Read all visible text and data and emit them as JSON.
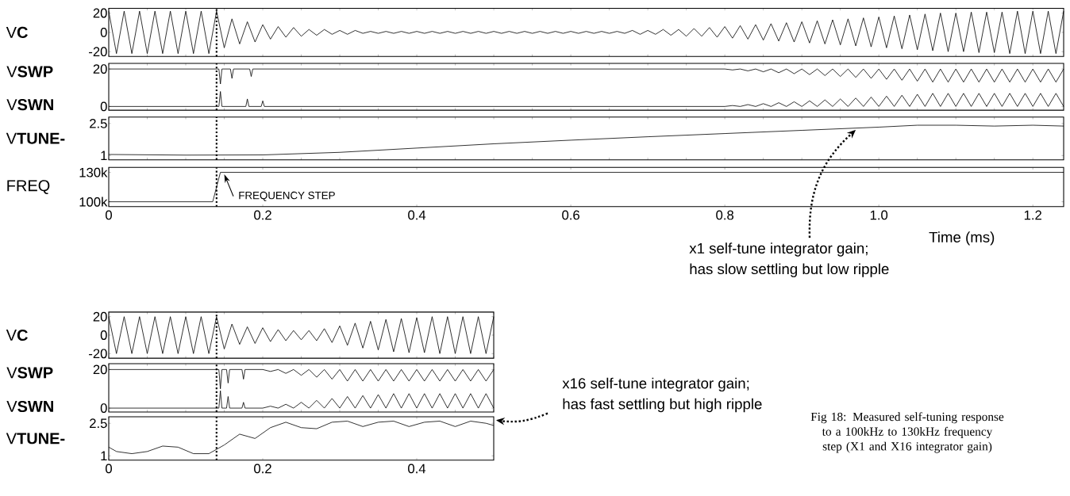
{
  "chart_data": [
    {
      "type": "line",
      "ylabel": "V**C**",
      "xlim": [
        0,
        1.24
      ],
      "ylim": [
        -25,
        25
      ],
      "yticks": [
        -20,
        0,
        20
      ],
      "tick_labels": "y",
      "ref_lines": [
        {
          "axis": "x",
          "value": 0.14,
          "line_style": "dotted"
        }
      ],
      "series": [
        {
          "color": "#000000",
          "x": [
            0,
            0.01,
            0.02,
            0.03,
            0.04,
            0.05,
            0.06,
            0.07,
            0.08,
            0.09,
            0.1,
            0.11,
            0.12,
            0.13,
            0.14,
            0.15,
            0.16,
            0.17,
            0.18,
            0.19,
            0.2,
            0.21,
            0.22,
            0.23,
            0.24,
            0.25,
            0.26,
            0.27,
            0.28,
            0.29,
            0.3,
            0.31,
            0.32,
            0.33,
            0.34,
            0.35,
            0.36,
            0.37,
            0.38,
            0.39,
            0.4,
            0.41,
            0.42,
            0.43,
            0.44,
            0.45,
            0.46,
            0.47,
            0.48,
            0.49,
            0.5,
            0.51,
            0.52,
            0.53,
            0.54,
            0.55,
            0.56,
            0.57,
            0.58,
            0.59,
            0.6,
            0.61,
            0.62,
            0.63,
            0.64,
            0.65,
            0.66,
            0.67,
            0.68,
            0.69,
            0.7,
            0.71,
            0.72,
            0.73,
            0.74,
            0.75,
            0.76,
            0.77,
            0.78,
            0.79,
            0.8,
            0.81,
            0.82,
            0.83,
            0.84,
            0.85,
            0.86,
            0.87,
            0.88,
            0.89,
            0.9,
            0.91,
            0.92,
            0.93,
            0.94,
            0.95,
            0.96,
            0.97,
            0.98,
            0.99,
            1.0,
            1.01,
            1.02,
            1.03,
            1.04,
            1.05,
            1.06,
            1.07,
            1.08,
            1.09,
            1.1,
            1.11,
            1.12,
            1.13,
            1.14,
            1.15,
            1.16,
            1.17,
            1.18,
            1.19,
            1.2,
            1.21,
            1.22,
            1.23,
            1.24
          ],
          "values": [
            22,
            -22,
            22,
            -22,
            22,
            -22,
            22,
            -22,
            22,
            -22,
            22,
            -22,
            22,
            -22,
            22,
            -16,
            14,
            -12,
            11,
            -10,
            8,
            -7,
            6,
            -5,
            5,
            -4,
            3,
            -3,
            3,
            -2,
            2,
            -2,
            2,
            -1,
            1,
            -1,
            1,
            -1,
            1,
            -1,
            1,
            -1,
            1,
            -1,
            1,
            -1,
            1,
            -1,
            1,
            -1,
            1,
            -1,
            1,
            -1,
            1,
            -1,
            1,
            -1,
            1,
            -1,
            1,
            -1,
            1,
            -1,
            1,
            -1,
            1,
            -1,
            2,
            -2,
            2,
            -2,
            3,
            -3,
            3,
            -4,
            4,
            -4,
            5,
            -5,
            6,
            -6,
            7,
            -7,
            8,
            -8,
            9,
            -9,
            10,
            -10,
            11,
            -11,
            12,
            -12,
            13,
            -13,
            14,
            -14,
            15,
            -15,
            16,
            -16,
            17,
            -17,
            18,
            -18,
            19,
            -19,
            20,
            -20,
            20,
            -20,
            21,
            -21,
            21,
            -21,
            21,
            -22,
            22,
            -22,
            22,
            -22,
            22,
            -22,
            22
          ]
        }
      ]
    },
    {
      "type": "line",
      "xlim": [
        0,
        1.24
      ],
      "ylim": [
        -2,
        23
      ],
      "yticks": [
        0,
        20
      ],
      "tick_labels": "y",
      "ref_lines": [
        {
          "axis": "x",
          "value": 0.14,
          "line_style": "dotted"
        }
      ],
      "annotations": [
        "V**SWP**",
        "V**SWN**"
      ],
      "series": [
        {
          "color": "#000000",
          "x": [
            0,
            0.143,
            0.145,
            0.147,
            0.158,
            0.16,
            0.162,
            0.183,
            0.185,
            0.187,
            0.8,
            0.81,
            0.82,
            0.83,
            0.84,
            0.85,
            0.86,
            0.87,
            0.88,
            0.89,
            0.9,
            0.91,
            0.92,
            0.93,
            0.94,
            0.95,
            0.96,
            0.97,
            0.98,
            0.99,
            1.0,
            1.01,
            1.02,
            1.03,
            1.04,
            1.05,
            1.06,
            1.07,
            1.08,
            1.09,
            1.1,
            1.11,
            1.12,
            1.13,
            1.14,
            1.15,
            1.16,
            1.17,
            1.18,
            1.19,
            1.2,
            1.21,
            1.22,
            1.23,
            1.24
          ],
          "values": [
            20,
            20,
            12,
            20,
            20,
            15,
            20,
            20,
            16,
            20,
            20,
            19.5,
            20,
            19,
            20,
            18.5,
            20,
            18,
            20,
            17.5,
            20,
            17,
            20,
            16.5,
            20,
            16,
            20,
            15.5,
            20,
            15,
            20,
            14.5,
            20,
            14,
            20,
            13.5,
            20,
            13,
            20,
            13,
            20,
            13,
            20,
            13,
            20,
            13,
            20,
            13,
            20,
            13,
            20,
            13,
            20,
            13,
            20
          ]
        },
        {
          "color": "#000000",
          "x": [
            0,
            0.143,
            0.145,
            0.147,
            0.178,
            0.18,
            0.182,
            0.198,
            0.2,
            0.202,
            0.8,
            0.81,
            0.82,
            0.83,
            0.84,
            0.85,
            0.86,
            0.87,
            0.88,
            0.89,
            0.9,
            0.91,
            0.92,
            0.93,
            0.94,
            0.95,
            0.96,
            0.97,
            0.98,
            0.99,
            1.0,
            1.01,
            1.02,
            1.03,
            1.04,
            1.05,
            1.06,
            1.07,
            1.08,
            1.09,
            1.1,
            1.11,
            1.12,
            1.13,
            1.14,
            1.15,
            1.16,
            1.17,
            1.18,
            1.19,
            1.2,
            1.21,
            1.22,
            1.23,
            1.24
          ],
          "values": [
            0,
            0,
            8,
            0,
            0,
            4,
            0,
            0,
            3,
            0,
            0,
            0.5,
            0,
            1,
            0,
            1.5,
            0,
            2,
            0,
            2.5,
            0,
            3,
            0,
            3.5,
            0,
            4,
            0,
            4.5,
            0,
            5,
            0,
            5.5,
            0,
            6,
            0,
            6.5,
            0,
            7,
            0,
            7,
            0,
            7,
            0,
            7,
            0,
            7,
            0,
            7,
            0,
            7,
            0,
            7,
            0,
            7,
            0
          ]
        }
      ]
    },
    {
      "type": "line",
      "ylabel": "V**TUNE-**",
      "xlim": [
        0,
        1.24
      ],
      "ylim": [
        0.8,
        2.8
      ],
      "yticks": [
        1,
        2.5
      ],
      "tick_labels": "y",
      "ref_lines": [
        {
          "axis": "x",
          "value": 0.14,
          "line_style": "dotted"
        }
      ],
      "annotations": [
        {
          "text": "x1 self-tune integrator gain;",
          "x": 0.97,
          "y": 2.2
        },
        "has slow settling but low ripple"
      ],
      "series": [
        {
          "color": "#000000",
          "x": [
            0,
            0.1,
            0.2,
            0.3,
            0.4,
            0.5,
            0.6,
            0.7,
            0.8,
            0.9,
            1.0,
            1.05,
            1.1,
            1.15,
            1.2,
            1.24
          ],
          "values": [
            1.05,
            1.02,
            1.03,
            1.15,
            1.35,
            1.55,
            1.72,
            1.88,
            2.03,
            2.18,
            2.33,
            2.42,
            2.42,
            2.38,
            2.42,
            2.38
          ]
        }
      ]
    },
    {
      "type": "line",
      "ylabel": "FREQ",
      "xlabel": "Time (ms)",
      "xlim": [
        0,
        1.24
      ],
      "ylim": [
        95000,
        135000
      ],
      "yticks": [
        {
          "value": 100000,
          "label": "100k"
        },
        {
          "value": 130000,
          "label": "130k"
        }
      ],
      "xticks": [
        0,
        0.2,
        0.4,
        0.6,
        0.8,
        {
          "value": 1,
          "label": "1.0"
        },
        1.2
      ],
      "ref_lines": [
        {
          "axis": "x",
          "value": 0.14,
          "line_style": "dotted"
        }
      ],
      "annotations": [
        {
          "text": "FREQUENCY STEP",
          "x": 0.15,
          "y": 128000
        }
      ],
      "series": [
        {
          "color": "#000000",
          "x": [
            0,
            0.135,
            0.145,
            1.24
          ],
          "values": [
            100000,
            100000,
            130000,
            130000
          ]
        }
      ]
    },
    {
      "type": "line",
      "ylabel": "V**C**",
      "xlim": [
        0,
        0.5
      ],
      "ylim": [
        -25,
        25
      ],
      "yticks": [
        -20,
        0,
        20
      ],
      "tick_labels": "y",
      "ref_lines": [
        {
          "axis": "x",
          "value": 0.14,
          "line_style": "dotted"
        }
      ],
      "series": [
        {
          "color": "#000000",
          "x": [
            0,
            0.01,
            0.02,
            0.03,
            0.04,
            0.05,
            0.06,
            0.07,
            0.08,
            0.09,
            0.1,
            0.11,
            0.12,
            0.13,
            0.14,
            0.15,
            0.16,
            0.17,
            0.18,
            0.19,
            0.2,
            0.21,
            0.22,
            0.23,
            0.24,
            0.25,
            0.26,
            0.27,
            0.28,
            0.29,
            0.3,
            0.31,
            0.32,
            0.33,
            0.34,
            0.35,
            0.36,
            0.37,
            0.38,
            0.39,
            0.4,
            0.41,
            0.42,
            0.43,
            0.44,
            0.45,
            0.46,
            0.47,
            0.48,
            0.49,
            0.5
          ],
          "values": [
            20,
            -20,
            20,
            -20,
            20,
            -20,
            20,
            -20,
            20,
            -20,
            20,
            -20,
            20,
            -20,
            20,
            -15,
            12,
            -10,
            9,
            -9,
            8,
            -7,
            6,
            -6,
            5,
            -5,
            5,
            -6,
            7,
            -8,
            10,
            -11,
            13,
            -14,
            15,
            -16,
            17,
            -18,
            18,
            -19,
            19,
            -19,
            20,
            -20,
            20,
            -20,
            20,
            -20,
            20,
            -20,
            20
          ]
        }
      ]
    },
    {
      "type": "line",
      "xlim": [
        0,
        0.5
      ],
      "ylim": [
        -2,
        23
      ],
      "yticks": [
        0,
        20
      ],
      "tick_labels": "y",
      "ref_lines": [
        {
          "axis": "x",
          "value": 0.14,
          "line_style": "dotted"
        }
      ],
      "annotations": [
        "V**SWP**",
        "V**SWN**"
      ],
      "series": [
        {
          "color": "#000000",
          "x": [
            0,
            0.143,
            0.145,
            0.147,
            0.153,
            0.155,
            0.157,
            0.173,
            0.175,
            0.177,
            0.2,
            0.21,
            0.22,
            0.23,
            0.24,
            0.25,
            0.26,
            0.27,
            0.28,
            0.29,
            0.3,
            0.31,
            0.32,
            0.33,
            0.34,
            0.35,
            0.36,
            0.37,
            0.38,
            0.39,
            0.4,
            0.41,
            0.42,
            0.43,
            0.44,
            0.45,
            0.46,
            0.47,
            0.48,
            0.49,
            0.5
          ],
          "values": [
            20,
            20,
            10,
            20,
            20,
            13,
            20,
            20,
            15,
            20,
            20,
            19,
            20,
            18,
            20,
            17,
            20,
            16,
            20,
            15,
            20,
            14,
            20,
            14,
            20,
            14,
            20,
            14,
            20,
            14,
            20,
            14,
            20,
            14,
            20,
            14,
            20,
            14,
            20,
            14,
            20
          ]
        },
        {
          "color": "#000000",
          "x": [
            0,
            0.143,
            0.145,
            0.147,
            0.153,
            0.155,
            0.157,
            0.173,
            0.175,
            0.177,
            0.2,
            0.21,
            0.22,
            0.23,
            0.24,
            0.25,
            0.26,
            0.27,
            0.28,
            0.29,
            0.3,
            0.31,
            0.32,
            0.33,
            0.34,
            0.35,
            0.36,
            0.37,
            0.38,
            0.39,
            0.4,
            0.41,
            0.42,
            0.43,
            0.44,
            0.45,
            0.46,
            0.47,
            0.48,
            0.49,
            0.5
          ],
          "values": [
            0,
            0,
            9,
            0,
            0,
            6,
            0,
            0,
            3,
            0,
            0,
            1,
            0,
            2,
            0,
            3,
            0,
            4,
            0,
            5,
            0,
            6,
            0,
            6.5,
            0,
            7,
            0,
            7.5,
            0,
            7.5,
            0,
            7.5,
            0,
            7.5,
            0,
            7.5,
            0,
            7.5,
            0,
            7.5,
            0
          ]
        }
      ]
    },
    {
      "type": "line",
      "ylabel": "V**TUNE-**",
      "xlim": [
        0,
        0.5
      ],
      "ylim": [
        0.8,
        2.8
      ],
      "yticks": [
        1,
        2.5
      ],
      "xticks": [
        0,
        0.2,
        0.4
      ],
      "ref_lines": [
        {
          "axis": "x",
          "value": 0.14,
          "line_style": "dotted"
        }
      ],
      "annotations": [
        "x16 self-tune integrator gain;",
        "has fast settling but high ripple",
        "Fig 18: Measured self-tuning response to a 100kHz to 130kHz frequency step (X1 and X16 integrator gain)"
      ],
      "series": [
        {
          "color": "#000000",
          "x": [
            0,
            0.01,
            0.03,
            0.05,
            0.07,
            0.09,
            0.11,
            0.13,
            0.15,
            0.17,
            0.19,
            0.21,
            0.23,
            0.25,
            0.27,
            0.29,
            0.31,
            0.33,
            0.35,
            0.37,
            0.39,
            0.41,
            0.43,
            0.45,
            0.47,
            0.49,
            0.5
          ],
          "values": [
            1.4,
            1.2,
            1.1,
            1.2,
            1.45,
            1.4,
            1.1,
            1.1,
            1.5,
            2.0,
            1.8,
            2.3,
            2.55,
            2.3,
            2.25,
            2.55,
            2.6,
            2.35,
            2.55,
            2.6,
            2.35,
            2.55,
            2.6,
            2.35,
            2.6,
            2.5,
            2.4
          ]
        }
      ]
    }
  ]
}
